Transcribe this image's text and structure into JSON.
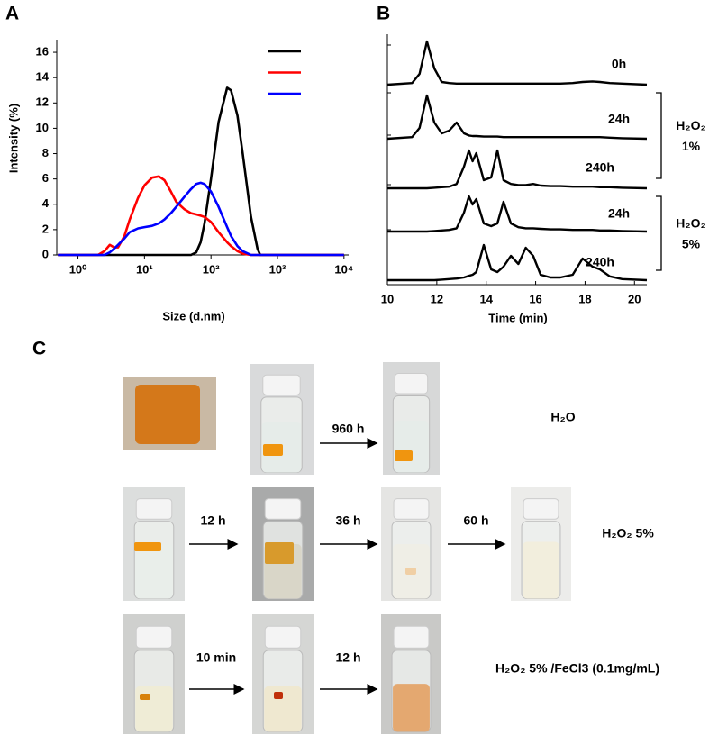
{
  "panels": {
    "a": "A",
    "b": "B",
    "c": "C"
  },
  "chart_data": [
    {
      "type": "line",
      "xlabel": "Size (d.nm)",
      "ylabel": "Intensity (%)",
      "x_log": true,
      "x": [
        0.5,
        2,
        2.5,
        3,
        3.5,
        4,
        5,
        6,
        8,
        10,
        13,
        16.5,
        20,
        25,
        30,
        40,
        50,
        60,
        70,
        80,
        100,
        130,
        175,
        200,
        250,
        300,
        400,
        500,
        550,
        1000,
        10000
      ],
      "series": [
        {
          "color": "#000000",
          "values": [
            0,
            0,
            0,
            0,
            0,
            0,
            0,
            0,
            0,
            0,
            0,
            0,
            0,
            0,
            0,
            0,
            0,
            0.2,
            1,
            2.5,
            6,
            10.5,
            13.2,
            13,
            11,
            8,
            3,
            0.5,
            0,
            0,
            0
          ]
        },
        {
          "color": "#ff0000",
          "values": [
            0,
            0,
            0.3,
            0.8,
            0.6,
            0.6,
            1.5,
            2.8,
            4.5,
            5.5,
            6.1,
            6.2,
            5.9,
            5,
            4.2,
            3.6,
            3.3,
            3.2,
            3.1,
            3,
            2.6,
            1.8,
            1,
            0.7,
            0.3,
            0.1,
            0,
            0,
            0,
            0,
            0
          ]
        },
        {
          "color": "#0000ff",
          "values": [
            0,
            0,
            0,
            0.2,
            0.5,
            0.8,
            1.3,
            1.8,
            2.1,
            2.2,
            2.3,
            2.5,
            2.8,
            3.3,
            3.8,
            4.6,
            5.2,
            5.6,
            5.7,
            5.6,
            5,
            3.8,
            2.2,
            1.5,
            0.7,
            0.3,
            0,
            0,
            0,
            0,
            0
          ]
        }
      ],
      "xlim": [
        0.48,
        11750
      ],
      "xticks": [
        {
          "value": 1,
          "label": "10⁰"
        },
        {
          "value": 10,
          "label": "10¹"
        },
        {
          "value": 100,
          "label": "10²"
        },
        {
          "value": 1000,
          "label": "10³"
        },
        {
          "value": 10000,
          "label": "10⁴"
        }
      ],
      "ylim": [
        0,
        17
      ],
      "yticks": [
        0,
        2,
        4,
        6,
        8,
        10,
        12,
        14,
        16
      ],
      "legend": "upper right"
    },
    {
      "type": "trace_stack",
      "xlabel": "Time (min)",
      "x": [
        10,
        11,
        11.3,
        11.6,
        11.9,
        12.2,
        12.5,
        12.8,
        13.1,
        13.3,
        13.45,
        13.6,
        13.9,
        14.2,
        14.45,
        14.7,
        15,
        15.3,
        15.6,
        15.9,
        16.2,
        16.6,
        17,
        17.5,
        17.9,
        18.3,
        18.6,
        19,
        19.5,
        20.5
      ],
      "series": [
        {
          "name": "0h",
          "color": "#000000",
          "values": [
            0,
            0.3,
            2,
            8,
            3,
            0.5,
            0.3,
            0.2,
            0.2,
            0.2,
            0.2,
            0.2,
            0.2,
            0.2,
            0.2,
            0.2,
            0.2,
            0.2,
            0.2,
            0.2,
            0.2,
            0.2,
            0.2,
            0.3,
            0.5,
            0.6,
            0.5,
            0.3,
            0.2,
            0
          ]
        },
        {
          "name": "24h",
          "color": "#000000",
          "values": [
            0,
            0.3,
            2,
            8,
            3,
            1,
            1.5,
            3,
            1,
            0.6,
            0.5,
            0.5,
            0.4,
            0.4,
            0.4,
            0.3,
            0.3,
            0.3,
            0.3,
            0.3,
            0.3,
            0.3,
            0.3,
            0.3,
            0.3,
            0.3,
            0.3,
            0.2,
            0.1,
            0
          ]
        },
        {
          "name": "240h",
          "color": "#000000",
          "values": [
            0,
            0,
            0,
            0,
            0.1,
            0.2,
            0.3,
            0.8,
            4,
            7,
            5,
            6.5,
            1.5,
            2,
            7,
            1.5,
            0.8,
            0.6,
            0.6,
            0.8,
            0.5,
            0.4,
            0.4,
            0.3,
            0.3,
            0.3,
            0.2,
            0.2,
            0.1,
            0
          ]
        },
        {
          "name": "24h",
          "color": "#000000",
          "values": [
            0,
            0,
            0,
            0,
            0.1,
            0.2,
            0.3,
            0.6,
            3.5,
            6.5,
            5,
            6,
            1.5,
            1,
            1.5,
            5.5,
            1.5,
            0.8,
            0.6,
            0.6,
            0.5,
            0.4,
            0.4,
            0.3,
            0.3,
            0.3,
            0.2,
            0.2,
            0.1,
            0
          ]
        },
        {
          "name": "240h",
          "color": "#000000",
          "values": [
            0,
            0,
            0,
            0,
            0,
            0.1,
            0.2,
            0.3,
            0.5,
            0.8,
            1,
            1.5,
            6.5,
            2,
            1.5,
            2.5,
            4.5,
            3,
            6,
            4.5,
            1,
            0.5,
            0.5,
            1,
            4,
            2.5,
            2,
            0.7,
            0.2,
            0
          ]
        }
      ],
      "xlim": [
        10,
        20.5
      ],
      "xticks": [
        10,
        12,
        14,
        16,
        18,
        20
      ],
      "groups": [
        [
          "H₂O₂",
          "1%"
        ],
        [
          "H₂O₂",
          "5%"
        ]
      ]
    }
  ],
  "photos": {
    "rows": [
      {
        "label": "H₂O",
        "steps": [
          "960 h"
        ]
      },
      {
        "label": "H₂O₂ 5%",
        "steps": [
          "12 h",
          "36 h",
          "60 h"
        ]
      },
      {
        "label": "H₂O₂ 5% /FeCl3 (0.1mg/mL)",
        "steps": [
          "10 min",
          "12 h"
        ]
      }
    ]
  }
}
